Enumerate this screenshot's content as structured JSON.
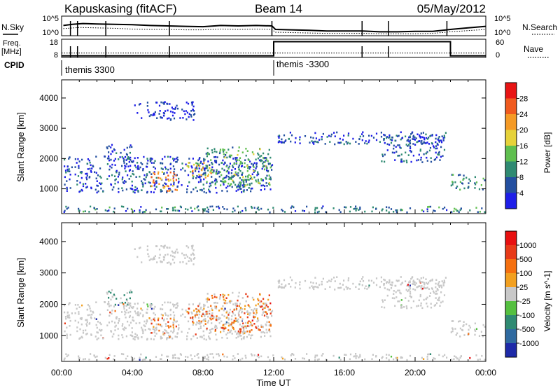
{
  "chart_data": {
    "type": "heatmap",
    "header": {
      "station": "Kapuskasing (fitACF)",
      "beam": "Beam 14",
      "date": "05/May/2012"
    },
    "time_axis": {
      "label": "Time UT",
      "range_hours": [
        0,
        24
      ],
      "ticks": [
        "00:00",
        "04:00",
        "08:00",
        "12:00",
        "16:00",
        "20:00",
        "00:00"
      ]
    },
    "noise_panel": {
      "left_label": "N.Sky",
      "right_label": "N.Search",
      "ticks": [
        "10^5",
        "10^0"
      ],
      "sky": [
        [
          0.1,
          2.6
        ],
        [
          0.6,
          2.9
        ],
        [
          1.2,
          3.1
        ],
        [
          2.0,
          3.0
        ],
        [
          3.0,
          2.9
        ],
        [
          4.0,
          2.8
        ],
        [
          5.0,
          2.6
        ],
        [
          6.0,
          2.5
        ],
        [
          7.0,
          2.4
        ],
        [
          8.0,
          2.3
        ],
        [
          9.0,
          2.6
        ],
        [
          10.0,
          2.5
        ],
        [
          11.0,
          2.6
        ],
        [
          11.9,
          2.5
        ],
        [
          12.1,
          1.6
        ],
        [
          13.0,
          1.5
        ],
        [
          14.0,
          1.4
        ],
        [
          15.0,
          1.2
        ],
        [
          16.0,
          1.2
        ],
        [
          17.0,
          1.2
        ],
        [
          18.0,
          1.0
        ],
        [
          19.0,
          1.0
        ],
        [
          20.0,
          1.1
        ],
        [
          21.0,
          1.1
        ],
        [
          22.0,
          1.6
        ],
        [
          23.0,
          2.0
        ],
        [
          24.0,
          2.4
        ]
      ],
      "search": [
        [
          0.1,
          1.8
        ],
        [
          1.0,
          2.1
        ],
        [
          2.0,
          2.0
        ],
        [
          3.0,
          1.9
        ],
        [
          4.0,
          1.7
        ],
        [
          5.0,
          1.6
        ],
        [
          6.0,
          1.6
        ],
        [
          7.0,
          1.5
        ],
        [
          8.0,
          1.5
        ],
        [
          9.0,
          1.7
        ],
        [
          10.0,
          1.6
        ],
        [
          11.0,
          1.7
        ],
        [
          11.9,
          1.6
        ],
        [
          12.1,
          0.9
        ],
        [
          13.0,
          0.8
        ],
        [
          14.0,
          0.7
        ],
        [
          15.0,
          0.6
        ],
        [
          16.0,
          0.6
        ],
        [
          17.0,
          0.6
        ],
        [
          18.0,
          0.5
        ],
        [
          19.0,
          0.5
        ],
        [
          20.0,
          0.5
        ],
        [
          21.0,
          0.6
        ],
        [
          22.0,
          1.0
        ],
        [
          23.0,
          1.3
        ],
        [
          24.0,
          1.6
        ]
      ],
      "spikes_hours": [
        0.5,
        0.9,
        2.5,
        6.1,
        11.9,
        17.0,
        18.5,
        21.8
      ]
    },
    "freq_panel": {
      "left_label": "Freq.",
      "left_unit": "[MHz]",
      "left_ticks": [
        "18",
        "8"
      ],
      "right_label": "Nave",
      "right_ticks": [
        "60",
        "0"
      ],
      "freq_mhz": [
        [
          0.0,
          10.4
        ],
        [
          12.0,
          10.4
        ],
        [
          24.0,
          10.4
        ]
      ],
      "nave": [
        [
          0.0,
          5
        ],
        [
          12.0,
          5
        ],
        [
          12.0,
          52
        ],
        [
          22.0,
          52
        ],
        [
          22.0,
          5
        ],
        [
          24.0,
          5
        ]
      ],
      "spikes_hours": [
        0.5,
        0.9,
        2.5,
        6.1,
        17.0,
        18.5
      ]
    },
    "cpid": {
      "label": "CPID",
      "segments": [
        {
          "start_hour": 0,
          "end_hour": 12,
          "name": "themis 3300"
        },
        {
          "start_hour": 12,
          "end_hour": 24,
          "name": "themis -3300"
        }
      ]
    },
    "power_panel": {
      "ylabel": "Slant Range [km]",
      "yticks": [
        1000,
        2000,
        3000,
        4000
      ],
      "ylim": [
        180,
        4600
      ],
      "colorbar_label": "Power [dB]",
      "colorbar_ticks": [
        "4",
        "8",
        "12",
        "16",
        "20",
        "24",
        "28"
      ],
      "colors": [
        "#1e1ee8",
        "#234fa0",
        "#2f8a72",
        "#5fbf4f",
        "#e6d23a",
        "#f59a25",
        "#f05a1e",
        "#e81414"
      ]
    },
    "velocity_panel": {
      "ylabel": "Slant Range [km]",
      "yticks": [
        1000,
        2000,
        3000,
        4000
      ],
      "ylim": [
        180,
        4600
      ],
      "colorbar_label": "Velocity [m s^-1]",
      "colorbar_ticks": [
        "1000",
        "500",
        "100",
        "25",
        "-25",
        "-100",
        "-500",
        "-1000"
      ],
      "colors": [
        "#1e2aa8",
        "#2f6aa0",
        "#2f8a72",
        "#55c040",
        "#c8c8c8",
        "#f2a020",
        "#f57010",
        "#e83a18",
        "#e81010"
      ]
    },
    "echo_regions": [
      {
        "t0": 0.1,
        "t1": 11.9,
        "r0": 900,
        "r1": 2100,
        "power": 5
      },
      {
        "t0": 2.5,
        "t1": 4.0,
        "r0": 2000,
        "r1": 2500,
        "power": 4
      },
      {
        "t0": 4.0,
        "t1": 7.5,
        "r0": 3300,
        "r1": 3900,
        "power": 3
      },
      {
        "t0": 5.0,
        "t1": 6.5,
        "r0": 950,
        "r1": 1600,
        "power": 22
      },
      {
        "t0": 7.0,
        "t1": 8.5,
        "r0": 1400,
        "r1": 1900,
        "power": 20
      },
      {
        "t0": 8.0,
        "t1": 11.8,
        "r0": 1100,
        "r1": 2400,
        "power": 12
      },
      {
        "t0": 12.2,
        "t1": 21.7,
        "r0": 2500,
        "r1": 2900,
        "power": 5
      },
      {
        "t0": 18.0,
        "t1": 21.7,
        "r0": 1900,
        "r1": 2800,
        "power": 6
      },
      {
        "t0": 22.0,
        "t1": 23.9,
        "r0": 1000,
        "r1": 1500,
        "power": 10
      },
      {
        "t0": 0.0,
        "t1": 24.0,
        "r0": 250,
        "r1": 450,
        "power": 8
      }
    ]
  }
}
